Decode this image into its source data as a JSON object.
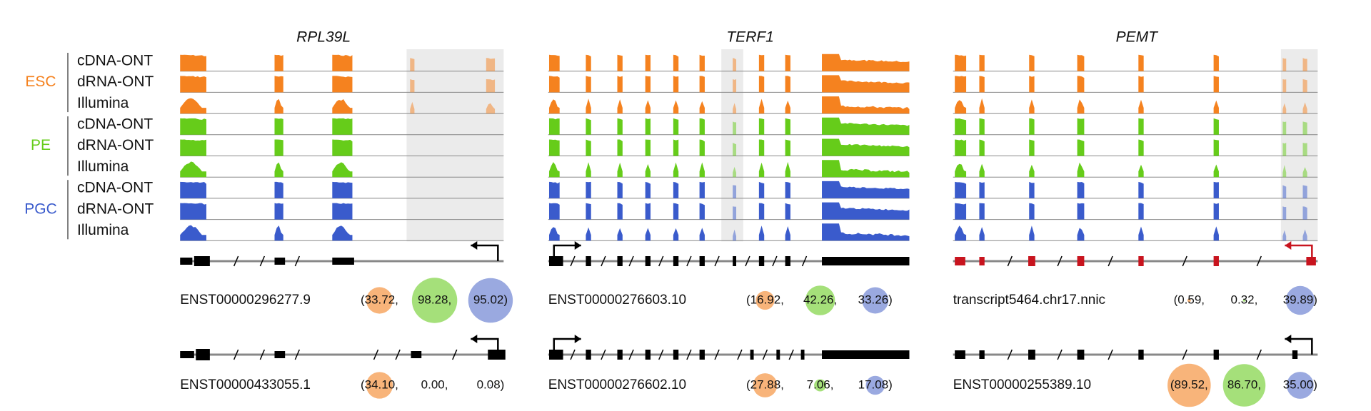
{
  "conditions": [
    {
      "name": "ESC",
      "color": "#f5821f",
      "assays": [
        "cDNA-ONT",
        "dRNA-ONT",
        "Illumina"
      ]
    },
    {
      "name": "PE",
      "color": "#66cc1a",
      "assays": [
        "cDNA-ONT",
        "dRNA-ONT",
        "Illumina"
      ]
    },
    {
      "name": "PGC",
      "color": "#3a5bcc",
      "assays": [
        "cDNA-ONT",
        "dRNA-ONT",
        "Illumina"
      ]
    }
  ],
  "bubble_colors": [
    "#f8b47a",
    "#a5e07a",
    "#9aa9e0"
  ],
  "genes": [
    {
      "name": "RPL39L",
      "transcripts": [
        {
          "id": "ENST00000296277.9",
          "values": [
            33.72,
            98.28,
            95.02
          ],
          "value_labels": [
            "(33.72,",
            "98.28,",
            "95.02)"
          ]
        },
        {
          "id": "ENST00000433055.1",
          "values": [
            34.1,
            0.0,
            0.08
          ],
          "value_labels": [
            "(34.10,",
            "0.00,",
            "0.08)"
          ]
        }
      ]
    },
    {
      "name": "TERF1",
      "transcripts": [
        {
          "id": "ENST00000276603.10",
          "values": [
            16.92,
            42.26,
            33.26
          ],
          "value_labels": [
            "(16.92,",
            "42.26,",
            "33.26)"
          ]
        },
        {
          "id": "ENST00000276602.10",
          "values": [
            27.88,
            7.06,
            17.08
          ],
          "value_labels": [
            "(27.88,",
            "7.06,",
            "17.08)"
          ]
        }
      ]
    },
    {
      "name": "PEMT",
      "transcripts": [
        {
          "id": "transcript5464.chr17.nnic",
          "values": [
            0.59,
            0.32,
            39.89
          ],
          "value_labels": [
            "(0.59,",
            "0.32,",
            "39.89)"
          ]
        },
        {
          "id": "ENST00000255389.10",
          "values": [
            89.52,
            86.7,
            35.0
          ],
          "value_labels": [
            "(89.52,",
            "86.70,",
            "35.00)"
          ]
        }
      ]
    }
  ]
}
